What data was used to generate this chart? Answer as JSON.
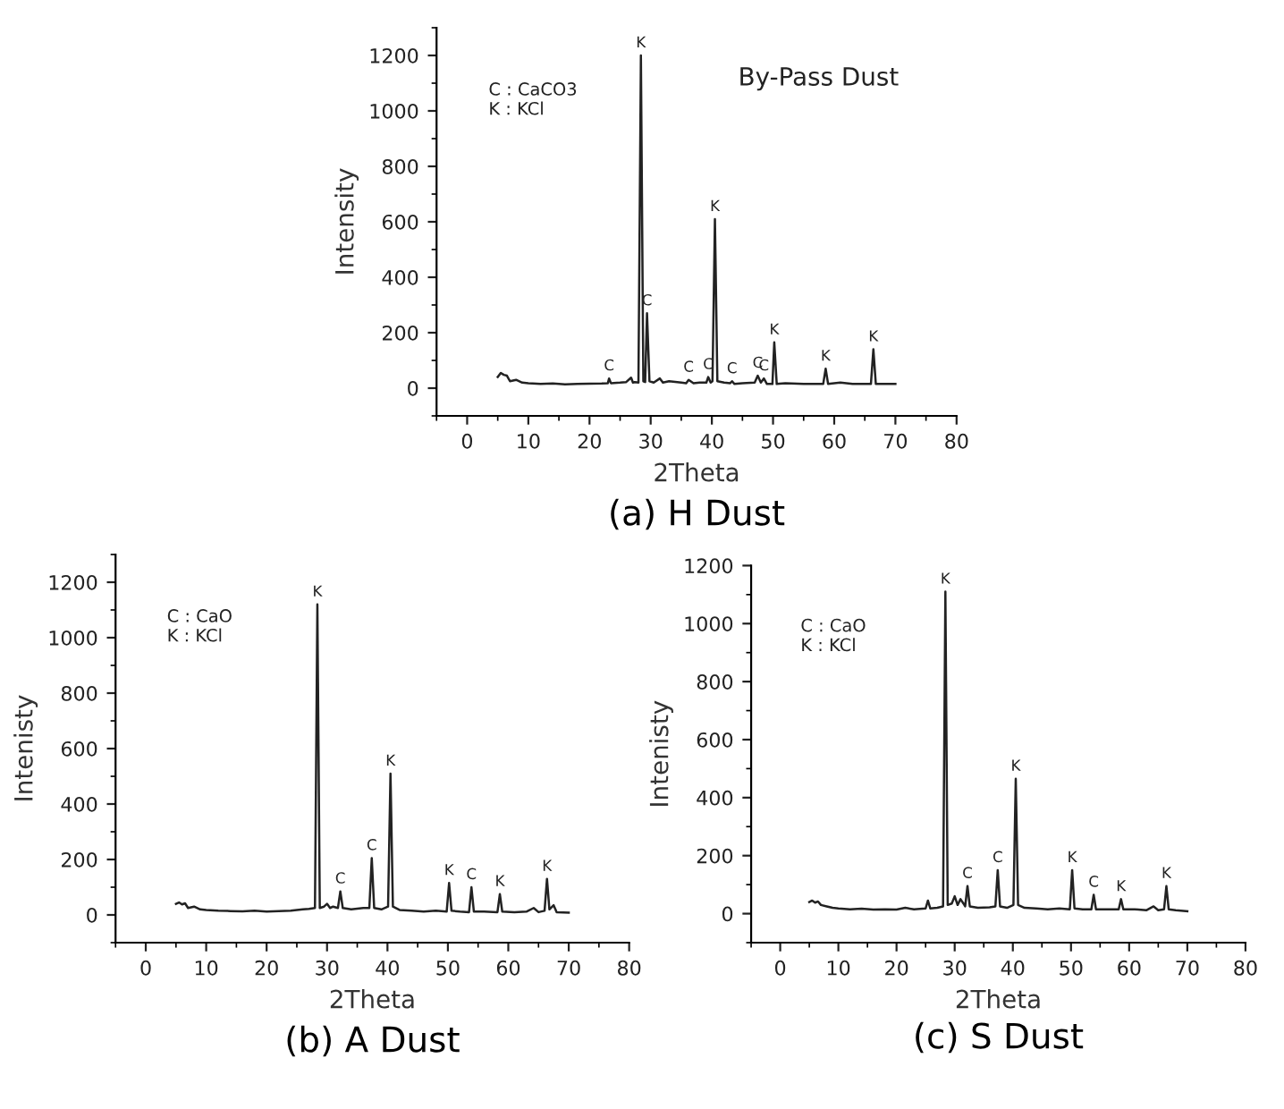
{
  "chart_data": [
    {
      "type": "line",
      "title": "(a) H Dust",
      "xlabel": "2Theta",
      "ylabel": "Intensity",
      "xlim": [
        -5,
        80
      ],
      "ylim": [
        -100,
        1300
      ],
      "xticks": [
        0,
        10,
        20,
        30,
        40,
        50,
        60,
        70,
        80
      ],
      "yticks": [
        0,
        200,
        400,
        600,
        800,
        1000,
        1200
      ],
      "series": [
        {
          "color": "#222222",
          "x": [
            5,
            5.5,
            6,
            6.5,
            7,
            8,
            9,
            10,
            12,
            14,
            16,
            18,
            20,
            22,
            23,
            23.2,
            23.5,
            25,
            26,
            26.8,
            27.1,
            27.4,
            28,
            28.4,
            28.8,
            29.1,
            29.4,
            29.8,
            30.5,
            31.5,
            32,
            33,
            35,
            35.8,
            36.2,
            37,
            38,
            39.1,
            39.4,
            39.8,
            40.1,
            40.5,
            40.9,
            42,
            43,
            43.3,
            43.7,
            45,
            47,
            47.5,
            48,
            48.5,
            49,
            49.9,
            50.2,
            50.6,
            52,
            55,
            58.2,
            58.6,
            59,
            61,
            63,
            66,
            66.4,
            66.8,
            68,
            70
          ],
          "values": [
            40,
            55,
            48,
            45,
            25,
            30,
            20,
            18,
            15,
            17,
            14,
            15,
            16,
            17,
            18,
            35,
            18,
            20,
            22,
            38,
            20,
            22,
            20,
            1200,
            25,
            22,
            270,
            25,
            20,
            35,
            20,
            25,
            20,
            18,
            30,
            18,
            20,
            20,
            40,
            20,
            25,
            610,
            25,
            20,
            18,
            25,
            15,
            18,
            20,
            45,
            20,
            35,
            15,
            15,
            165,
            15,
            18,
            15,
            15,
            70,
            15,
            20,
            15,
            15,
            140,
            15,
            15,
            15
          ]
        }
      ],
      "annotations": [
        "C : CaCO3\nK : KCl",
        "By-Pass Dust",
        {
          "text": "C",
          "x": 23.2,
          "y": 35
        },
        {
          "text": "K",
          "x": 28.4,
          "y": 1200
        },
        {
          "text": "C",
          "x": 29.4,
          "y": 270
        },
        {
          "text": "C",
          "x": 36.2,
          "y": 30
        },
        {
          "text": "C",
          "x": 39.4,
          "y": 40
        },
        {
          "text": "K",
          "x": 40.5,
          "y": 610
        },
        {
          "text": "C",
          "x": 43.3,
          "y": 25
        },
        {
          "text": "C",
          "x": 47.5,
          "y": 45
        },
        {
          "text": "C",
          "x": 48.5,
          "y": 35
        },
        {
          "text": "K",
          "x": 50.2,
          "y": 165
        },
        {
          "text": "K",
          "x": 58.6,
          "y": 70
        },
        {
          "text": "K",
          "x": 66.4,
          "y": 140
        }
      ]
    },
    {
      "type": "line",
      "title": "(b) A Dust",
      "xlabel": "2Theta",
      "ylabel": "Intenisty",
      "xlim": [
        -5,
        80
      ],
      "ylim": [
        -100,
        1300
      ],
      "xticks": [
        0,
        10,
        20,
        30,
        40,
        50,
        60,
        70,
        80
      ],
      "yticks": [
        0,
        200,
        400,
        600,
        800,
        1000,
        1200
      ],
      "series": [
        {
          "color": "#222222",
          "x": [
            5,
            5.5,
            6,
            6.5,
            7,
            8,
            9,
            10,
            12,
            14,
            16,
            18,
            20,
            22,
            24,
            26,
            27,
            28,
            28.4,
            28.8,
            29.5,
            30,
            30.5,
            31,
            31.8,
            32.2,
            32.6,
            34,
            36,
            37,
            37.4,
            37.8,
            39,
            40.1,
            40.5,
            40.9,
            42,
            44,
            46,
            48,
            49.8,
            50.2,
            50.6,
            52,
            53.5,
            53.9,
            54.3,
            56,
            58.2,
            58.6,
            59,
            61,
            63,
            64.2,
            65,
            66,
            66.4,
            66.8,
            67.5,
            68,
            70
          ],
          "values": [
            40,
            45,
            38,
            42,
            25,
            30,
            20,
            18,
            15,
            14,
            13,
            15,
            12,
            14,
            15,
            20,
            22,
            25,
            1120,
            25,
            30,
            40,
            25,
            30,
            25,
            85,
            25,
            20,
            25,
            25,
            205,
            25,
            20,
            30,
            510,
            30,
            18,
            15,
            12,
            15,
            12,
            115,
            15,
            12,
            10,
            100,
            12,
            12,
            10,
            75,
            12,
            10,
            12,
            25,
            10,
            15,
            130,
            20,
            35,
            10,
            8
          ]
        }
      ],
      "annotations": [
        "C : CaO\nK : KCl",
        {
          "text": "K",
          "x": 28.4,
          "y": 1120
        },
        {
          "text": "C",
          "x": 32.2,
          "y": 85
        },
        {
          "text": "C",
          "x": 37.4,
          "y": 205
        },
        {
          "text": "K",
          "x": 40.5,
          "y": 510
        },
        {
          "text": "K",
          "x": 50.2,
          "y": 115
        },
        {
          "text": "C",
          "x": 53.9,
          "y": 100
        },
        {
          "text": "K",
          "x": 58.6,
          "y": 75
        },
        {
          "text": "K",
          "x": 66.4,
          "y": 130
        }
      ]
    },
    {
      "type": "line",
      "title": "(c) S Dust",
      "xlabel": "2Theta",
      "ylabel": "Intenisty",
      "xlim": [
        -5,
        80
      ],
      "ylim": [
        -100,
        1200
      ],
      "xticks": [
        0,
        10,
        20,
        30,
        40,
        50,
        60,
        70,
        80
      ],
      "yticks": [
        0,
        200,
        400,
        600,
        800,
        1000,
        1200
      ],
      "series": [
        {
          "color": "#222222",
          "x": [
            5,
            5.5,
            6,
            6.5,
            7,
            8,
            9,
            10,
            12,
            14,
            16,
            18,
            20,
            21.5,
            23,
            25,
            25.4,
            25.8,
            27,
            28,
            28.4,
            28.8,
            29.5,
            30,
            30.5,
            31,
            31.5,
            31.8,
            32.2,
            32.6,
            34,
            36,
            37,
            37.4,
            37.8,
            39,
            40.1,
            40.5,
            40.9,
            42,
            44,
            46,
            48,
            49.8,
            50.2,
            50.6,
            52,
            53.5,
            53.9,
            54.3,
            56,
            58.2,
            58.6,
            59,
            61,
            63,
            64.2,
            65,
            66,
            66.4,
            66.8,
            68,
            70
          ],
          "values": [
            40,
            45,
            38,
            42,
            30,
            25,
            20,
            18,
            15,
            17,
            14,
            15,
            14,
            20,
            15,
            18,
            45,
            18,
            20,
            25,
            1110,
            30,
            35,
            60,
            30,
            50,
            35,
            25,
            95,
            25,
            20,
            22,
            25,
            150,
            25,
            20,
            30,
            465,
            30,
            20,
            18,
            15,
            18,
            15,
            150,
            18,
            15,
            15,
            65,
            15,
            15,
            15,
            50,
            15,
            15,
            12,
            25,
            12,
            15,
            95,
            15,
            12,
            8
          ]
        }
      ],
      "annotations": [
        "C : CaO\nK : KCl",
        {
          "text": "K",
          "x": 28.4,
          "y": 1110
        },
        {
          "text": "C",
          "x": 32.2,
          "y": 95
        },
        {
          "text": "C",
          "x": 37.4,
          "y": 150
        },
        {
          "text": "K",
          "x": 40.5,
          "y": 465
        },
        {
          "text": "K",
          "x": 50.2,
          "y": 150
        },
        {
          "text": "C",
          "x": 53.9,
          "y": 65
        },
        {
          "text": "K",
          "x": 58.6,
          "y": 50
        },
        {
          "text": "K",
          "x": 66.4,
          "y": 95
        }
      ]
    }
  ]
}
